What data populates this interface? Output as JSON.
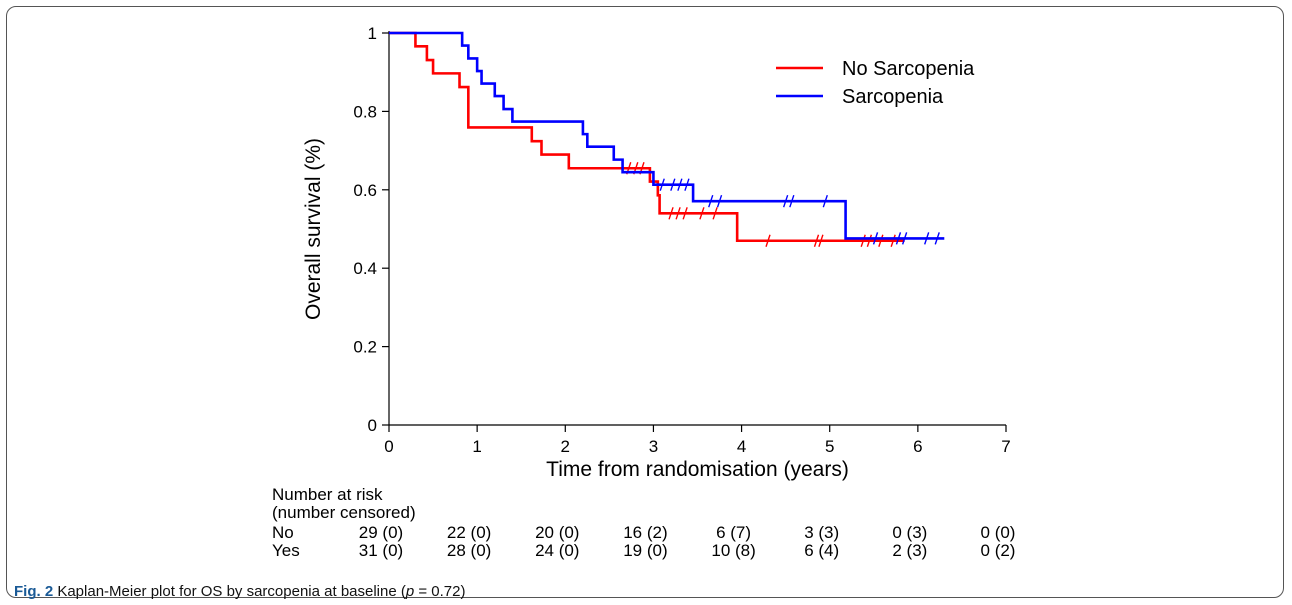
{
  "caption": {
    "label": "Fig. 2",
    "text_before_p": " Kaplan-Meier plot for OS by sarcopenia at baseline (",
    "p_symbol": "p",
    "text_after_p": " = 0.72)"
  },
  "colors": {
    "no_sarcopenia": "#ff0000",
    "sarcopenia": "#0000ff",
    "axis": "#000000"
  },
  "chart_data": {
    "type": "line",
    "title": "",
    "xlabel": "Time from randomisation (years)",
    "ylabel": "Overall survival (%)",
    "xlim": [
      0,
      7
    ],
    "ylim": [
      0,
      1
    ],
    "xticks": [
      0,
      1,
      2,
      3,
      4,
      5,
      6,
      7
    ],
    "yticks": [
      0,
      0.2,
      0.4,
      0.6,
      0.8,
      1
    ],
    "ytick_labels": [
      "0",
      "0.2",
      "0.4",
      "0.6",
      "0.8",
      "1"
    ],
    "grid": false,
    "legend_position": "top-right",
    "series": [
      {
        "name": "No Sarcopenia",
        "color": "#ff0000",
        "steps": [
          [
            0,
            1.0
          ],
          [
            0.3,
            0.966
          ],
          [
            0.43,
            0.931
          ],
          [
            0.5,
            0.897
          ],
          [
            0.8,
            0.862
          ],
          [
            0.9,
            0.759
          ],
          [
            1.62,
            0.724
          ],
          [
            1.73,
            0.69
          ],
          [
            2.04,
            0.655
          ],
          [
            2.96,
            0.621
          ],
          [
            3.05,
            0.586
          ],
          [
            3.07,
            0.54
          ],
          [
            3.95,
            0.47
          ]
        ],
        "end": 5.85,
        "censored": [
          2.72,
          2.8,
          2.87,
          3.2,
          3.28,
          3.36,
          3.55,
          3.7,
          4.3,
          4.85,
          4.9,
          5.38,
          5.45,
          5.58,
          5.72
        ]
      },
      {
        "name": "Sarcopenia",
        "color": "#0000ff",
        "steps": [
          [
            0,
            1.0
          ],
          [
            0.83,
            0.968
          ],
          [
            0.9,
            0.935
          ],
          [
            1.0,
            0.903
          ],
          [
            1.05,
            0.871
          ],
          [
            1.2,
            0.839
          ],
          [
            1.3,
            0.806
          ],
          [
            1.4,
            0.774
          ],
          [
            2.2,
            0.742
          ],
          [
            2.25,
            0.71
          ],
          [
            2.55,
            0.677
          ],
          [
            2.65,
            0.645
          ],
          [
            3.0,
            0.613
          ],
          [
            3.45,
            0.571
          ],
          [
            5.18,
            0.476
          ]
        ],
        "end": 6.3,
        "censored": [
          3.1,
          3.22,
          3.3,
          3.38,
          3.65,
          3.75,
          4.5,
          4.57,
          4.95,
          5.52,
          5.78,
          5.85,
          6.1,
          6.22
        ]
      }
    ],
    "risk_table": {
      "heading_line1": "Number at risk",
      "heading_line2": "(number censored)",
      "rows": [
        {
          "label": "No",
          "values": [
            "29 (0)",
            "22 (0)",
            "20 (0)",
            "16 (2)",
            "6 (7)",
            "3 (3)",
            "0 (3)",
            "0 (0)"
          ]
        },
        {
          "label": "Yes",
          "values": [
            "31 (0)",
            "28 (0)",
            "24 (0)",
            "19 (0)",
            "10 (8)",
            "6 (4)",
            "2 (3)",
            "0 (2)"
          ]
        }
      ]
    }
  }
}
